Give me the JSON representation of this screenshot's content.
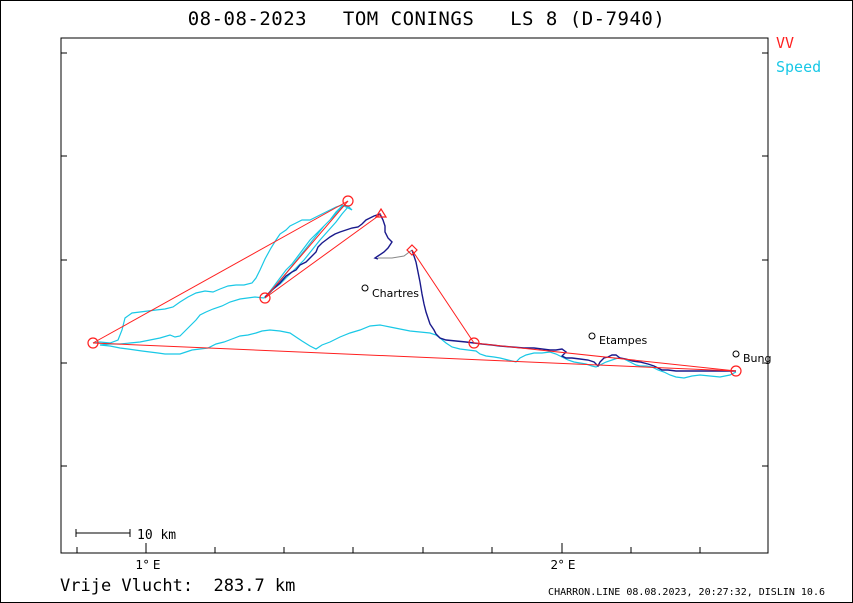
{
  "title": "08-08-2023   TOM CONINGS   LS 8 (D-7940)",
  "legend": {
    "vv": "VV",
    "speed": "Speed",
    "vv_color": "#ff2020",
    "speed_color": "#19c8e6"
  },
  "axis": {
    "x_ticks": [
      "1° E",
      "2° E"
    ]
  },
  "scale_bar": "10 km",
  "cities": [
    "Chartres",
    "Etampes",
    "Bung"
  ],
  "footer": {
    "distance": "Vrije Vlucht:  283.7 km",
    "credit": "CHARRON.LINE 08.08.2023, 20:27:32, DISLIN 10.6"
  },
  "colors": {
    "track": "#1a1a8c",
    "task": "#ff2020",
    "speed": "#19c8e6",
    "gap": "#888888"
  }
}
